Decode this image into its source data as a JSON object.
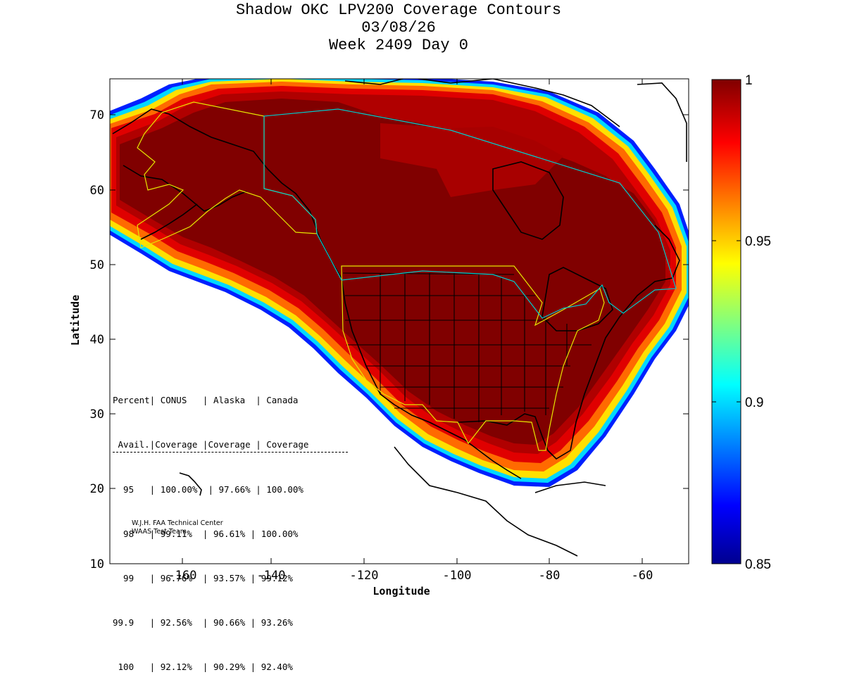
{
  "title": {
    "line1": "Shadow OKC LPV200 Coverage Contours",
    "line2": "03/08/26",
    "line3": "Week 2409 Day 0"
  },
  "axes": {
    "xlabel": "Longitude",
    "ylabel": "Latitude",
    "xticks": [
      "-160",
      "-140",
      "-120",
      "-100",
      "-80",
      "-60"
    ],
    "yticks": [
      "10",
      "20",
      "30",
      "40",
      "50",
      "60",
      "70"
    ],
    "xlim": [
      -175,
      -50
    ],
    "ylim": [
      10,
      75
    ]
  },
  "colorbar": {
    "min": 0.85,
    "max": 1,
    "ticks": [
      "1",
      "0.95",
      "0.9",
      "0.85"
    ],
    "colormap": "jet"
  },
  "stats_table": {
    "header1": "Percent| CONUS   | Alaska  | Canada",
    "header2": " Avail.|Coverage |Coverage | Coverage",
    "rows": [
      "  95   | 100.00%  | 97.66% | 100.00%",
      "  98   | 99.11%  | 96.61% | 100.00%",
      "  99   | 96.76%  | 93.57% | 99.12%",
      "99.9   | 92.56%  | 90.66% | 93.26%",
      " 100   | 92.12%  | 90.29% | 92.40%"
    ]
  },
  "credit": {
    "line1": "W.J.H. FAA Technical Center",
    "line2": "WAAS Test Team"
  },
  "colors": {
    "core": "#7f0000",
    "dark_red": "#a50000",
    "red": "#e00000",
    "orange": "#ff7000",
    "yellow": "#ffff00",
    "cyan": "#00e0ff",
    "blue": "#0020ff",
    "service_boundary": "#e6e600",
    "region_boundary": "#00cccc"
  }
}
